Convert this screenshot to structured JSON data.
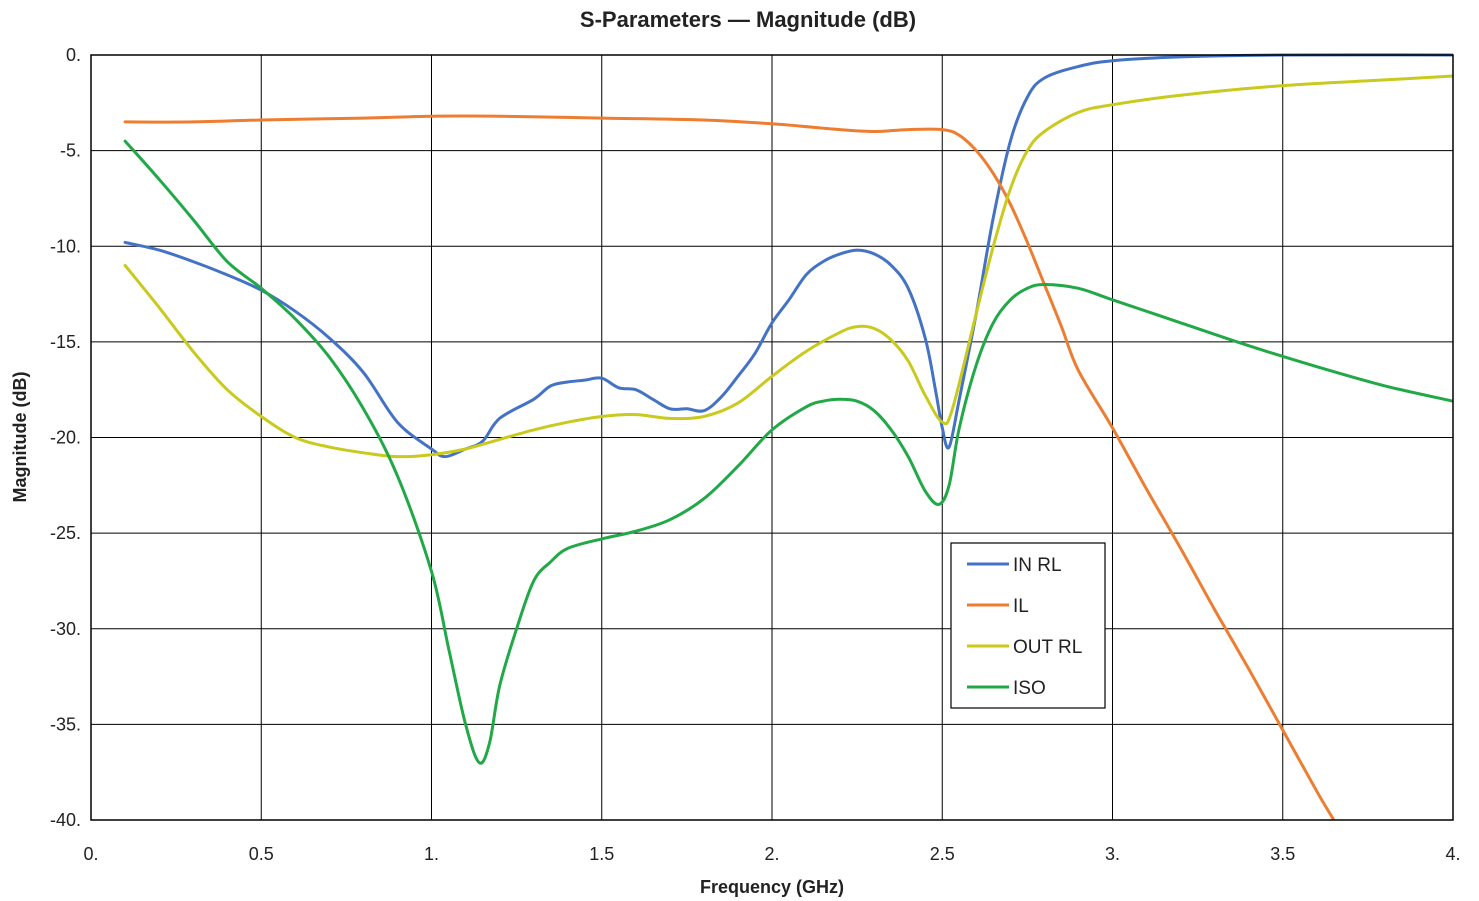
{
  "chart_data": {
    "type": "line",
    "title": "S-Parameters — Magnitude (dB)",
    "xlabel": "Frequency (GHz)",
    "ylabel": "Magnitude (dB)",
    "xlim": [
      0,
      4
    ],
    "ylim": [
      -40,
      0
    ],
    "x_ticks": [
      0,
      0.5,
      1,
      1.5,
      2,
      2.5,
      3,
      3.5,
      4
    ],
    "x_tick_labels": [
      "0.",
      "0.5",
      "1.",
      "1.5",
      "2.",
      "2.5",
      "3.",
      "3.5",
      "4."
    ],
    "y_ticks": [
      0,
      -5,
      -10,
      -15,
      -20,
      -25,
      -30,
      -35,
      -40
    ],
    "y_tick_labels": [
      "0.",
      "-5.",
      "-10.",
      "-15.",
      "-20.",
      "-25.",
      "-30.",
      "-35.",
      "-40."
    ],
    "grid": true,
    "legend_position": "center-right",
    "series": [
      {
        "name": "IN RL",
        "color": "#4472C4",
        "points": [
          [
            0.1,
            -9.8
          ],
          [
            0.2,
            -10.2
          ],
          [
            0.3,
            -10.8
          ],
          [
            0.4,
            -11.5
          ],
          [
            0.5,
            -12.3
          ],
          [
            0.6,
            -13.4
          ],
          [
            0.7,
            -14.8
          ],
          [
            0.8,
            -16.6
          ],
          [
            0.9,
            -19.2
          ],
          [
            1.0,
            -20.6
          ],
          [
            1.04,
            -21.0
          ],
          [
            1.1,
            -20.6
          ],
          [
            1.15,
            -20.2
          ],
          [
            1.2,
            -19.0
          ],
          [
            1.3,
            -18.0
          ],
          [
            1.35,
            -17.3
          ],
          [
            1.4,
            -17.1
          ],
          [
            1.45,
            -17.0
          ],
          [
            1.5,
            -16.9
          ],
          [
            1.55,
            -17.4
          ],
          [
            1.6,
            -17.5
          ],
          [
            1.65,
            -18.0
          ],
          [
            1.7,
            -18.5
          ],
          [
            1.75,
            -18.5
          ],
          [
            1.8,
            -18.6
          ],
          [
            1.85,
            -17.9
          ],
          [
            1.9,
            -16.8
          ],
          [
            1.95,
            -15.6
          ],
          [
            2.0,
            -14.0
          ],
          [
            2.05,
            -12.8
          ],
          [
            2.1,
            -11.5
          ],
          [
            2.15,
            -10.8
          ],
          [
            2.2,
            -10.4
          ],
          [
            2.25,
            -10.2
          ],
          [
            2.3,
            -10.4
          ],
          [
            2.35,
            -11.0
          ],
          [
            2.4,
            -12.2
          ],
          [
            2.45,
            -14.8
          ],
          [
            2.48,
            -17.5
          ],
          [
            2.5,
            -19.5
          ],
          [
            2.52,
            -20.5
          ],
          [
            2.55,
            -18.0
          ],
          [
            2.6,
            -13.5
          ],
          [
            2.65,
            -8.5
          ],
          [
            2.7,
            -4.5
          ],
          [
            2.75,
            -2.2
          ],
          [
            2.8,
            -1.2
          ],
          [
            2.9,
            -0.6
          ],
          [
            3.0,
            -0.3
          ],
          [
            3.2,
            -0.1
          ],
          [
            3.5,
            0.0
          ],
          [
            4.0,
            0.0
          ]
        ]
      },
      {
        "name": "IL",
        "color": "#ED7D31",
        "points": [
          [
            0.1,
            -3.5
          ],
          [
            0.3,
            -3.5
          ],
          [
            0.5,
            -3.4
          ],
          [
            0.8,
            -3.3
          ],
          [
            1.0,
            -3.2
          ],
          [
            1.2,
            -3.2
          ],
          [
            1.5,
            -3.3
          ],
          [
            1.8,
            -3.4
          ],
          [
            2.0,
            -3.6
          ],
          [
            2.2,
            -3.9
          ],
          [
            2.3,
            -4.0
          ],
          [
            2.4,
            -3.9
          ],
          [
            2.5,
            -3.9
          ],
          [
            2.55,
            -4.2
          ],
          [
            2.6,
            -5.0
          ],
          [
            2.65,
            -6.2
          ],
          [
            2.7,
            -7.8
          ],
          [
            2.75,
            -9.8
          ],
          [
            2.8,
            -12.0
          ],
          [
            2.85,
            -14.2
          ],
          [
            2.9,
            -16.5
          ],
          [
            3.0,
            -19.5
          ],
          [
            3.1,
            -22.7
          ],
          [
            3.2,
            -25.8
          ],
          [
            3.3,
            -29.0
          ],
          [
            3.4,
            -32.1
          ],
          [
            3.5,
            -35.3
          ],
          [
            3.6,
            -38.5
          ],
          [
            3.65,
            -40.0
          ]
        ]
      },
      {
        "name": "OUT RL",
        "color": "#C9C91E",
        "points": [
          [
            0.1,
            -11.0
          ],
          [
            0.2,
            -13.2
          ],
          [
            0.3,
            -15.5
          ],
          [
            0.4,
            -17.5
          ],
          [
            0.5,
            -18.9
          ],
          [
            0.6,
            -20.0
          ],
          [
            0.7,
            -20.5
          ],
          [
            0.8,
            -20.8
          ],
          [
            0.9,
            -21.0
          ],
          [
            1.0,
            -20.9
          ],
          [
            1.1,
            -20.6
          ],
          [
            1.2,
            -20.1
          ],
          [
            1.3,
            -19.6
          ],
          [
            1.4,
            -19.2
          ],
          [
            1.5,
            -18.9
          ],
          [
            1.6,
            -18.8
          ],
          [
            1.7,
            -19.0
          ],
          [
            1.8,
            -18.9
          ],
          [
            1.9,
            -18.2
          ],
          [
            2.0,
            -16.8
          ],
          [
            2.1,
            -15.5
          ],
          [
            2.2,
            -14.5
          ],
          [
            2.25,
            -14.2
          ],
          [
            2.3,
            -14.3
          ],
          [
            2.35,
            -14.9
          ],
          [
            2.4,
            -16.0
          ],
          [
            2.45,
            -17.8
          ],
          [
            2.5,
            -19.2
          ],
          [
            2.53,
            -18.5
          ],
          [
            2.6,
            -13.5
          ],
          [
            2.65,
            -10.0
          ],
          [
            2.7,
            -7.0
          ],
          [
            2.75,
            -5.0
          ],
          [
            2.8,
            -4.0
          ],
          [
            2.9,
            -3.0
          ],
          [
            3.0,
            -2.6
          ],
          [
            3.2,
            -2.1
          ],
          [
            3.5,
            -1.6
          ],
          [
            3.8,
            -1.3
          ],
          [
            4.0,
            -1.1
          ]
        ]
      },
      {
        "name": "ISO",
        "color": "#21A847",
        "points": [
          [
            0.1,
            -4.5
          ],
          [
            0.2,
            -6.5
          ],
          [
            0.3,
            -8.6
          ],
          [
            0.4,
            -10.8
          ],
          [
            0.5,
            -12.2
          ],
          [
            0.6,
            -13.8
          ],
          [
            0.7,
            -15.8
          ],
          [
            0.8,
            -18.5
          ],
          [
            0.9,
            -22.0
          ],
          [
            1.0,
            -27.0
          ],
          [
            1.05,
            -31.0
          ],
          [
            1.1,
            -35.0
          ],
          [
            1.14,
            -37.0
          ],
          [
            1.17,
            -36.0
          ],
          [
            1.2,
            -33.0
          ],
          [
            1.25,
            -30.0
          ],
          [
            1.3,
            -27.5
          ],
          [
            1.35,
            -26.5
          ],
          [
            1.4,
            -25.8
          ],
          [
            1.5,
            -25.3
          ],
          [
            1.6,
            -24.9
          ],
          [
            1.7,
            -24.3
          ],
          [
            1.8,
            -23.2
          ],
          [
            1.9,
            -21.5
          ],
          [
            2.0,
            -19.6
          ],
          [
            2.1,
            -18.4
          ],
          [
            2.15,
            -18.1
          ],
          [
            2.2,
            -18.0
          ],
          [
            2.25,
            -18.1
          ],
          [
            2.3,
            -18.6
          ],
          [
            2.35,
            -19.6
          ],
          [
            2.4,
            -21.0
          ],
          [
            2.45,
            -22.8
          ],
          [
            2.49,
            -23.5
          ],
          [
            2.52,
            -22.5
          ],
          [
            2.55,
            -19.5
          ],
          [
            2.6,
            -16.2
          ],
          [
            2.65,
            -14.0
          ],
          [
            2.7,
            -12.8
          ],
          [
            2.75,
            -12.2
          ],
          [
            2.8,
            -12.0
          ],
          [
            2.9,
            -12.2
          ],
          [
            3.0,
            -12.8
          ],
          [
            3.2,
            -14.0
          ],
          [
            3.4,
            -15.2
          ],
          [
            3.6,
            -16.3
          ],
          [
            3.8,
            -17.3
          ],
          [
            4.0,
            -18.1
          ]
        ]
      }
    ]
  }
}
